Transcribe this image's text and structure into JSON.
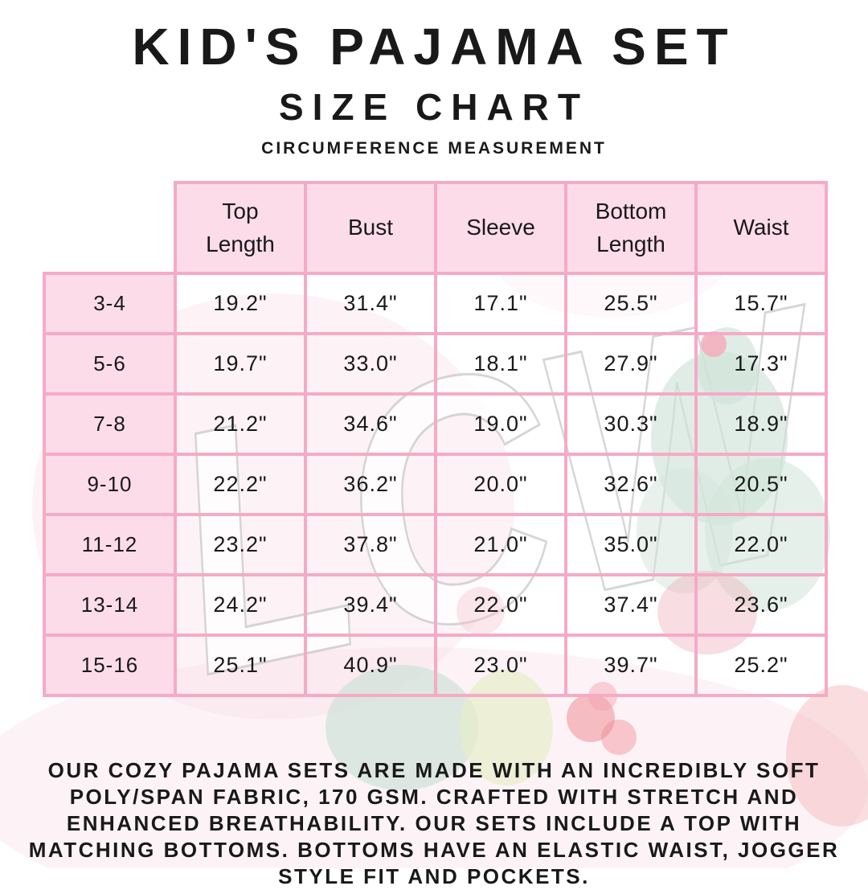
{
  "header": {
    "title": "KID'S PAJAMA SET",
    "subtitle": "SIZE CHART",
    "tagline": "CIRCUMFERENCE MEASUREMENT"
  },
  "size_chart": {
    "columns": [
      "",
      "Top Length",
      "Bust",
      "Sleeve",
      "Bottom Length",
      "Waist"
    ],
    "rows": [
      {
        "size": "3-4",
        "values": [
          "19.2\"",
          "31.4\"",
          "17.1\"",
          "25.5\"",
          "15.7\""
        ]
      },
      {
        "size": "5-6",
        "values": [
          "19.7\"",
          "33.0\"",
          "18.1\"",
          "27.9\"",
          "17.3\""
        ]
      },
      {
        "size": "7-8",
        "values": [
          "21.2\"",
          "34.6\"",
          "19.0\"",
          "30.3\"",
          "18.9\""
        ]
      },
      {
        "size": "9-10",
        "values": [
          "22.2\"",
          "36.2\"",
          "20.0\"",
          "32.6\"",
          "20.5\""
        ]
      },
      {
        "size": "11-12",
        "values": [
          "23.2\"",
          "37.8\"",
          "21.0\"",
          "35.0\"",
          "22.0\""
        ]
      },
      {
        "size": "13-14",
        "values": [
          "24.2\"",
          "39.4\"",
          "22.0\"",
          "37.4\"",
          "23.6\""
        ]
      },
      {
        "size": "15-16",
        "values": [
          "25.1\"",
          "40.9\"",
          "23.0\"",
          "39.7\"",
          "25.2\""
        ]
      }
    ]
  },
  "description": "OUR COZY PAJAMA SETS ARE MADE WITH AN INCREDIBLY SOFT POLY/SPAN FABRIC, 170 GSM. CRAFTED WITH STRETCH AND ENHANCED BREATHABILITY. OUR SETS INCLUDE A TOP WITH MATCHING BOTTOMS. BOTTOMS HAVE AN ELASTIC WAIST, JOGGER STYLE FIT AND POCKETS.",
  "watermark": {
    "text": "LCW"
  },
  "colors": {
    "table_border_pink": "#f5aac6",
    "cell_fill_pink": "#fcdce8",
    "text_black": "#191919",
    "cactus_green": "#cfe3d8",
    "flower_red": "#ef8e96"
  }
}
